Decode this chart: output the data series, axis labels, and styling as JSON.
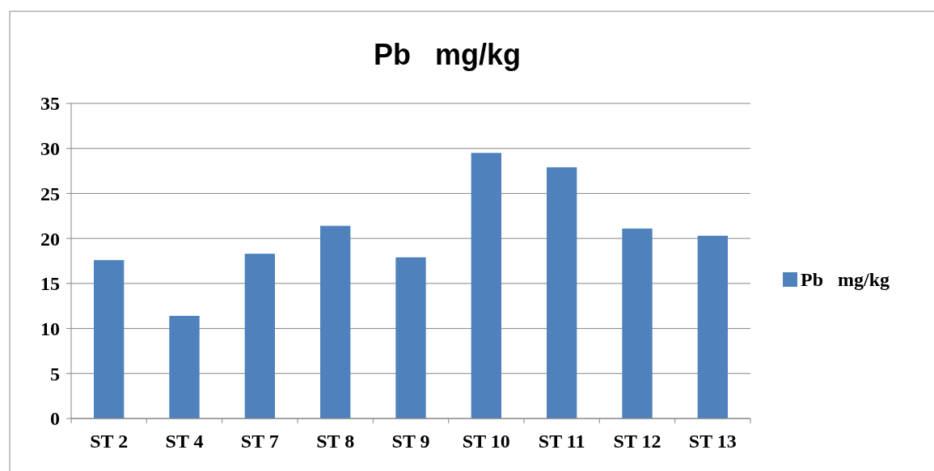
{
  "chart_data": {
    "type": "bar",
    "title": "Pb   mg/kg",
    "categories": [
      "ST 2",
      "ST 4",
      "ST 7",
      "ST 8",
      "ST 9",
      "ST 10",
      "ST 11",
      "ST 12",
      "ST 13"
    ],
    "series": [
      {
        "name": "Pb   mg/kg",
        "color": "#4f81bd",
        "values": [
          17.6,
          11.4,
          18.3,
          21.4,
          17.9,
          29.5,
          27.9,
          21.1,
          20.3
        ]
      }
    ],
    "ylim": [
      0,
      35
    ],
    "yticks": [
      0,
      5,
      10,
      15,
      20,
      25,
      30,
      35
    ],
    "grid": "y",
    "legend": "right"
  }
}
